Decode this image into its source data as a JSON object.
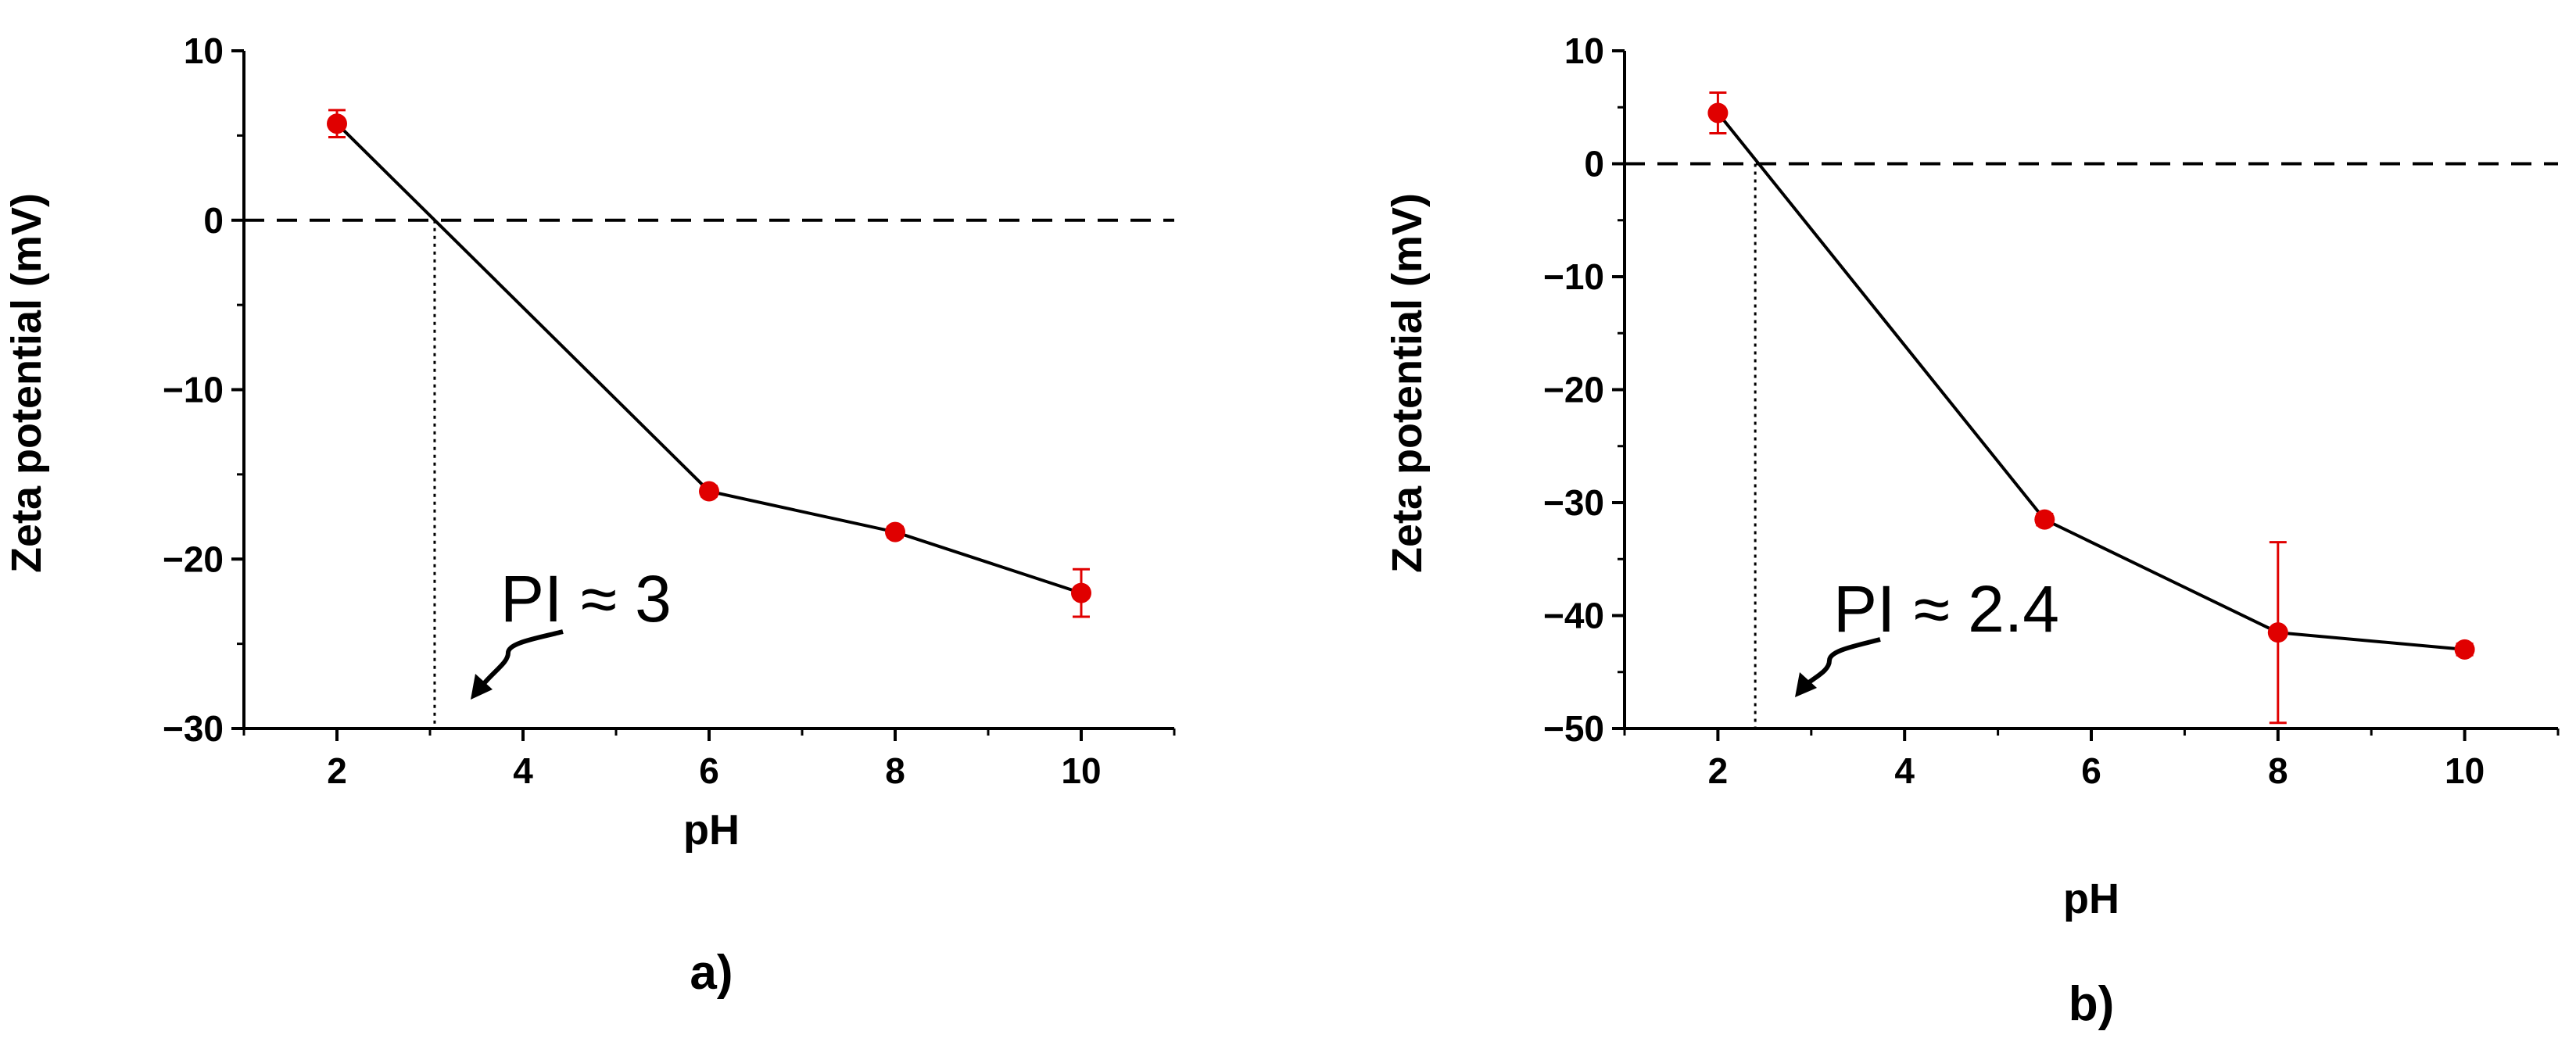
{
  "chart_data": [
    {
      "type": "line",
      "panel_label": "a)",
      "xlabel": "pH",
      "ylabel": "Zeta potential (mV)",
      "xlim": [
        1,
        11
      ],
      "ylim": [
        -30,
        10
      ],
      "xticks": [
        2,
        4,
        6,
        8,
        10
      ],
      "yticks": [
        10,
        0,
        -10,
        -20,
        -30
      ],
      "ytick_labels": [
        "10",
        "0",
        "−10",
        "−20",
        "−30"
      ],
      "series": [
        {
          "name": "Zeta potential",
          "x": [
            2,
            6,
            8,
            10
          ],
          "y": [
            5.7,
            -16.0,
            -18.4,
            -22.0
          ],
          "yerr": [
            0.8,
            0.3,
            0.3,
            1.4
          ]
        }
      ],
      "zero_line": 0,
      "pi_value": 3.05,
      "annotation": "PI ≈ 3",
      "colors": {
        "marker": "#e00000",
        "line": "#000000"
      }
    },
    {
      "type": "line",
      "panel_label": "b)",
      "xlabel": "pH",
      "ylabel": "Zeta potential (mV)",
      "xlim": [
        1,
        11
      ],
      "ylim": [
        -50,
        10
      ],
      "xticks": [
        2,
        4,
        6,
        8,
        10
      ],
      "yticks": [
        10,
        0,
        -10,
        -20,
        -30,
        -40,
        -50
      ],
      "ytick_labels": [
        "10",
        "0",
        "−10",
        "−20",
        "−30",
        "−40",
        "−50"
      ],
      "series": [
        {
          "name": "Zeta potential",
          "x": [
            2,
            5.5,
            8,
            10
          ],
          "y": [
            4.5,
            -31.5,
            -41.5,
            -43.0
          ],
          "yerr": [
            1.8,
            0.5,
            8.0,
            0.5
          ]
        }
      ],
      "zero_line": 0,
      "pi_value": 2.4,
      "annotation": "PI ≈ 2.4",
      "colors": {
        "marker": "#e00000",
        "line": "#000000"
      }
    }
  ]
}
